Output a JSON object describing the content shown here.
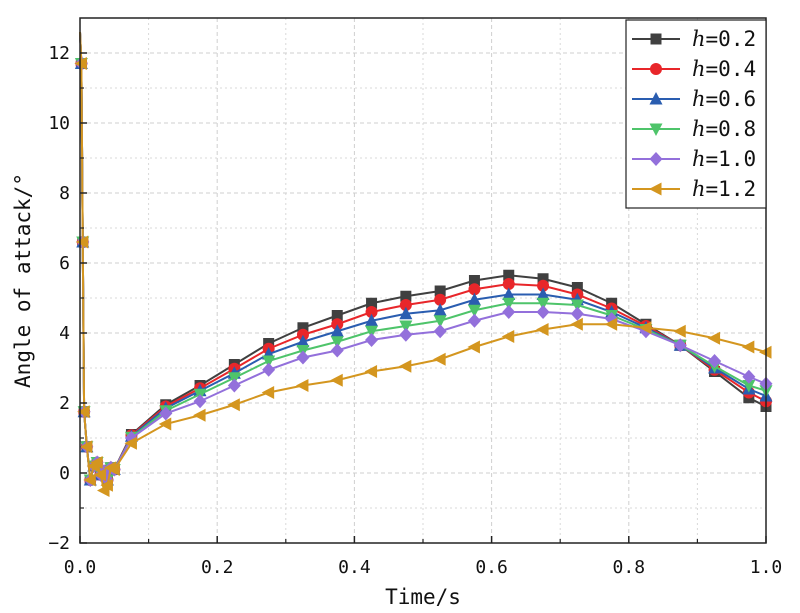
{
  "chart_data": {
    "type": "line",
    "title": "",
    "xlabel": "Time/s",
    "ylabel": "Angle of attack/°",
    "xlim": [
      0.0,
      1.0
    ],
    "ylim": [
      -2,
      13
    ],
    "xticks": [
      0.0,
      0.2,
      0.4,
      0.6,
      0.8,
      1.0
    ],
    "xtick_labels": [
      "0.0",
      "0.2",
      "0.4",
      "0.6",
      "0.8",
      "1.0"
    ],
    "yticks": [
      -2,
      0,
      2,
      4,
      6,
      8,
      10,
      12
    ],
    "ytick_labels": [
      "−2",
      "0",
      "2",
      "4",
      "6",
      "8",
      "10",
      "12"
    ],
    "grid": true,
    "legend_position": "top-right",
    "legend_prefix": "h",
    "series": [
      {
        "name": "=0.2",
        "color": "#404040",
        "marker": "square",
        "x": [
          0,
          0.002,
          0.004,
          0.006,
          0.01,
          0.015,
          0.02,
          0.025,
          0.03,
          0.035,
          0.04,
          0.045,
          0.05,
          0.075,
          0.125,
          0.175,
          0.225,
          0.275,
          0.325,
          0.375,
          0.425,
          0.475,
          0.525,
          0.575,
          0.625,
          0.675,
          0.725,
          0.775,
          0.825,
          0.875,
          0.925,
          0.975,
          1.0
        ],
        "y": [
          12.6,
          11.7,
          6.6,
          1.75,
          0.75,
          -0.2,
          0.2,
          0.3,
          -0.05,
          0.05,
          -0.2,
          0.15,
          0.1,
          1.1,
          1.95,
          2.5,
          3.1,
          3.7,
          4.15,
          4.5,
          4.85,
          5.05,
          5.2,
          5.5,
          5.65,
          5.55,
          5.3,
          4.85,
          4.25,
          3.65,
          2.9,
          2.15,
          1.9
        ]
      },
      {
        "name": "=0.4",
        "color": "#e8262a",
        "marker": "circle",
        "x": [
          0,
          0.002,
          0.004,
          0.006,
          0.01,
          0.015,
          0.02,
          0.025,
          0.03,
          0.035,
          0.04,
          0.045,
          0.05,
          0.075,
          0.125,
          0.175,
          0.225,
          0.275,
          0.325,
          0.375,
          0.425,
          0.475,
          0.525,
          0.575,
          0.625,
          0.675,
          0.725,
          0.775,
          0.825,
          0.875,
          0.925,
          0.975,
          1.0
        ],
        "y": [
          12.6,
          11.7,
          6.6,
          1.75,
          0.75,
          -0.2,
          0.2,
          0.3,
          -0.05,
          0.05,
          -0.2,
          0.15,
          0.1,
          1.08,
          1.9,
          2.42,
          2.98,
          3.55,
          3.95,
          4.25,
          4.6,
          4.8,
          4.95,
          5.25,
          5.4,
          5.35,
          5.1,
          4.7,
          4.2,
          3.65,
          2.95,
          2.3,
          2.05
        ]
      },
      {
        "name": "=0.6",
        "color": "#2a5db0",
        "marker": "triangle-up",
        "x": [
          0,
          0.002,
          0.004,
          0.006,
          0.01,
          0.015,
          0.02,
          0.025,
          0.03,
          0.035,
          0.04,
          0.045,
          0.05,
          0.075,
          0.125,
          0.175,
          0.225,
          0.275,
          0.325,
          0.375,
          0.425,
          0.475,
          0.525,
          0.575,
          0.625,
          0.675,
          0.725,
          0.775,
          0.825,
          0.875,
          0.925,
          0.975,
          1.0
        ],
        "y": [
          12.6,
          11.7,
          6.6,
          1.75,
          0.75,
          -0.2,
          0.2,
          0.3,
          -0.05,
          0.05,
          -0.2,
          0.15,
          0.1,
          1.05,
          1.85,
          2.35,
          2.85,
          3.4,
          3.75,
          4.05,
          4.35,
          4.55,
          4.65,
          4.95,
          5.1,
          5.1,
          4.95,
          4.6,
          4.15,
          3.65,
          3.0,
          2.4,
          2.2
        ]
      },
      {
        "name": "=0.8",
        "color": "#4ec46a",
        "marker": "triangle-down",
        "x": [
          0,
          0.002,
          0.004,
          0.006,
          0.01,
          0.015,
          0.02,
          0.025,
          0.03,
          0.035,
          0.04,
          0.045,
          0.05,
          0.075,
          0.125,
          0.175,
          0.225,
          0.275,
          0.325,
          0.375,
          0.425,
          0.475,
          0.525,
          0.575,
          0.625,
          0.675,
          0.725,
          0.775,
          0.825,
          0.875,
          0.925,
          0.975,
          1.0
        ],
        "y": [
          12.6,
          11.7,
          6.6,
          1.75,
          0.75,
          -0.2,
          0.2,
          0.3,
          -0.05,
          0.05,
          -0.2,
          0.15,
          0.1,
          1.02,
          1.78,
          2.25,
          2.72,
          3.2,
          3.5,
          3.75,
          4.05,
          4.2,
          4.35,
          4.65,
          4.85,
          4.85,
          4.8,
          4.5,
          4.1,
          3.65,
          3.05,
          2.5,
          2.35
        ]
      },
      {
        "name": "=1.0",
        "color": "#9370db",
        "marker": "diamond",
        "x": [
          0,
          0.002,
          0.004,
          0.006,
          0.01,
          0.015,
          0.02,
          0.025,
          0.03,
          0.035,
          0.04,
          0.045,
          0.05,
          0.075,
          0.125,
          0.175,
          0.225,
          0.275,
          0.325,
          0.375,
          0.425,
          0.475,
          0.525,
          0.575,
          0.625,
          0.675,
          0.725,
          0.775,
          0.825,
          0.875,
          0.925,
          0.975,
          1.0
        ],
        "y": [
          12.6,
          11.7,
          6.6,
          1.75,
          0.75,
          -0.2,
          0.2,
          0.3,
          -0.05,
          0.05,
          -0.2,
          0.15,
          0.1,
          1.0,
          1.7,
          2.05,
          2.5,
          2.95,
          3.3,
          3.5,
          3.8,
          3.95,
          4.05,
          4.35,
          4.6,
          4.6,
          4.55,
          4.4,
          4.05,
          3.65,
          3.2,
          2.75,
          2.55
        ]
      },
      {
        "name": "=1.2",
        "color": "#d4961f",
        "marker": "triangle-left",
        "x": [
          0,
          0.002,
          0.004,
          0.006,
          0.01,
          0.015,
          0.02,
          0.025,
          0.03,
          0.035,
          0.04,
          0.045,
          0.05,
          0.075,
          0.125,
          0.175,
          0.225,
          0.275,
          0.325,
          0.375,
          0.425,
          0.475,
          0.525,
          0.575,
          0.625,
          0.675,
          0.725,
          0.775,
          0.825,
          0.875,
          0.925,
          0.975,
          1.0
        ],
        "y": [
          12.6,
          11.7,
          6.6,
          1.75,
          0.75,
          -0.2,
          0.2,
          0.3,
          -0.05,
          -0.5,
          -0.35,
          0.15,
          0.1,
          0.85,
          1.4,
          1.65,
          1.95,
          2.3,
          2.5,
          2.65,
          2.9,
          3.05,
          3.25,
          3.6,
          3.9,
          4.1,
          4.25,
          4.25,
          4.15,
          4.05,
          3.85,
          3.6,
          3.45
        ]
      }
    ]
  }
}
